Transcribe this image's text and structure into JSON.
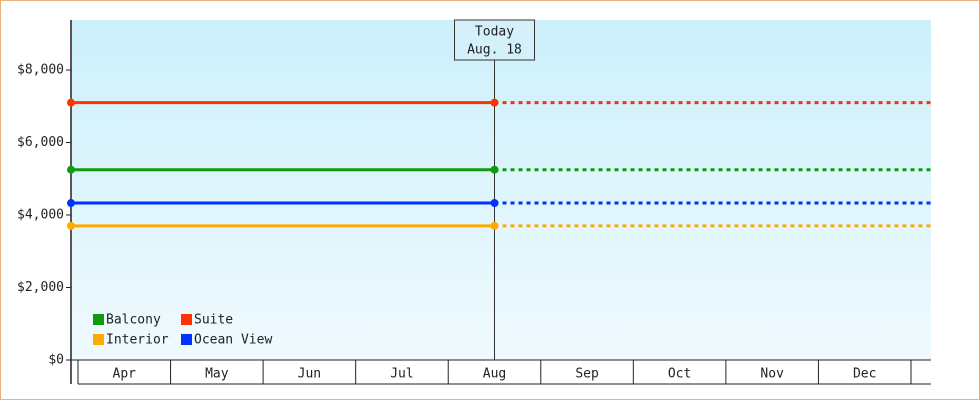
{
  "chart_data": {
    "type": "line",
    "categories": [
      "Apr",
      "May",
      "Jun",
      "Jul",
      "Aug",
      "Sep",
      "Oct",
      "Nov",
      "Dec"
    ],
    "series": [
      {
        "name": "Balcony",
        "color": "#119911",
        "value": 5250
      },
      {
        "name": "Suite",
        "color": "#ff3300",
        "value": 7100
      },
      {
        "name": "Interior",
        "color": "#ffaa00",
        "value": 3700
      },
      {
        "name": "Ocean View",
        "color": "#0033ff",
        "value": 4330
      }
    ],
    "annotation": {
      "category": "Aug",
      "lines": [
        "Today",
        "Aug. 18"
      ]
    },
    "ylim": [
      0,
      9380
    ],
    "yticks": [
      {
        "value": 0,
        "label": "$0"
      },
      {
        "value": 2000,
        "label": "$2,000"
      },
      {
        "value": 4000,
        "label": "$4,000"
      },
      {
        "value": 6000,
        "label": "$6,000"
      },
      {
        "value": 8000,
        "label": "$8,000"
      }
    ],
    "legend": "lower-left"
  }
}
